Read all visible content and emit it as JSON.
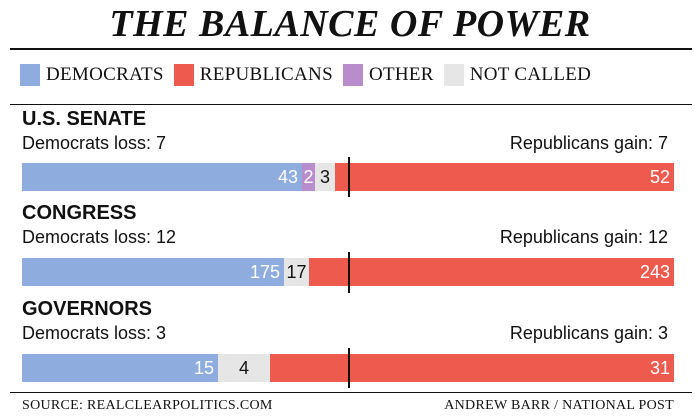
{
  "title": "THE BALANCE OF POWER",
  "legend": [
    {
      "label": "DEMOCRATS",
      "color": "#8eadde"
    },
    {
      "label": "REPUBLICANS",
      "color": "#ef5a4e"
    },
    {
      "label": "OTHER",
      "color": "#b98ccb"
    },
    {
      "label": "NOT CALLED",
      "color": "#e6e6e6"
    }
  ],
  "chart_data": [
    {
      "type": "bar",
      "title": "U.S. SENATE",
      "left_note": "Democrats loss: 7",
      "right_note": "Republicans gain: 7",
      "categories": [
        "Democrats",
        "Other",
        "Not called",
        "Republicans"
      ],
      "values": [
        43,
        2,
        3,
        52
      ],
      "total": 100
    },
    {
      "type": "bar",
      "title": "CONGRESS",
      "left_note": "Democrats loss: 12",
      "right_note": "Republicans gain: 12",
      "categories": [
        "Democrats",
        "Not called",
        "Republicans"
      ],
      "values": [
        175,
        17,
        243
      ],
      "total": 435
    },
    {
      "type": "bar",
      "title": "GOVERNORS",
      "left_note": "Democrats loss: 3",
      "right_note": "Republicans gain: 3",
      "categories": [
        "Democrats",
        "Not called",
        "Republicans"
      ],
      "values": [
        15,
        4,
        31
      ],
      "total": 50
    }
  ],
  "footer": {
    "source": "SOURCE: REALCLEARPOLITICS.COM",
    "credit": "ANDREW BARR / NATIONAL POST"
  }
}
